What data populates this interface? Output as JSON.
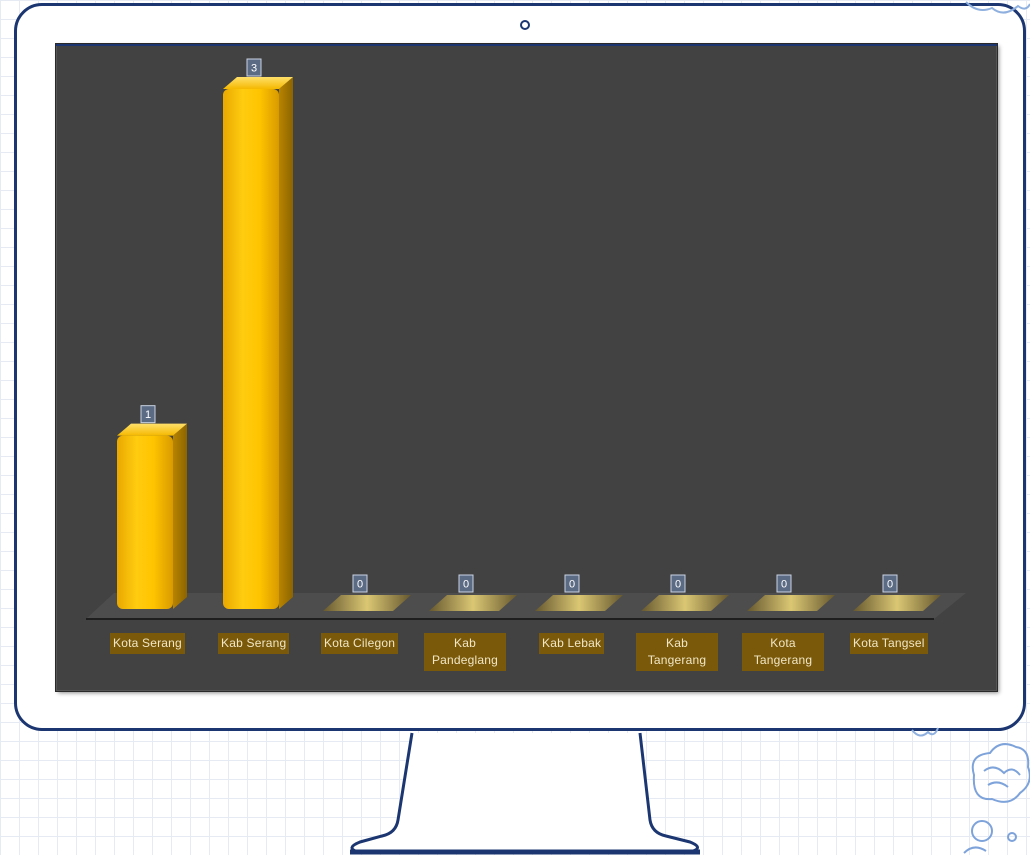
{
  "chart_data": {
    "type": "bar",
    "categories": [
      "Kota Serang",
      "Kab Serang",
      "Kota Cilegon",
      "Kab Pandeglang",
      "Kab Lebak",
      "Kab Tangerang",
      "Kota Tangerang",
      "Kota Tangsel"
    ],
    "values": [
      1,
      3,
      0,
      0,
      0,
      0,
      0,
      0
    ],
    "data_labels": [
      "1",
      "3",
      "0",
      "0",
      "0",
      "0",
      "0",
      "0"
    ],
    "ylim": [
      0,
      3
    ],
    "title": "",
    "xlabel": "",
    "ylabel": "",
    "grid": false,
    "legend": "none",
    "style": "3d-column"
  },
  "colors": {
    "bar": "#ffc000",
    "plot_background": "#424242",
    "label_background": "#7a5a0a",
    "frame": "#1b3670"
  }
}
